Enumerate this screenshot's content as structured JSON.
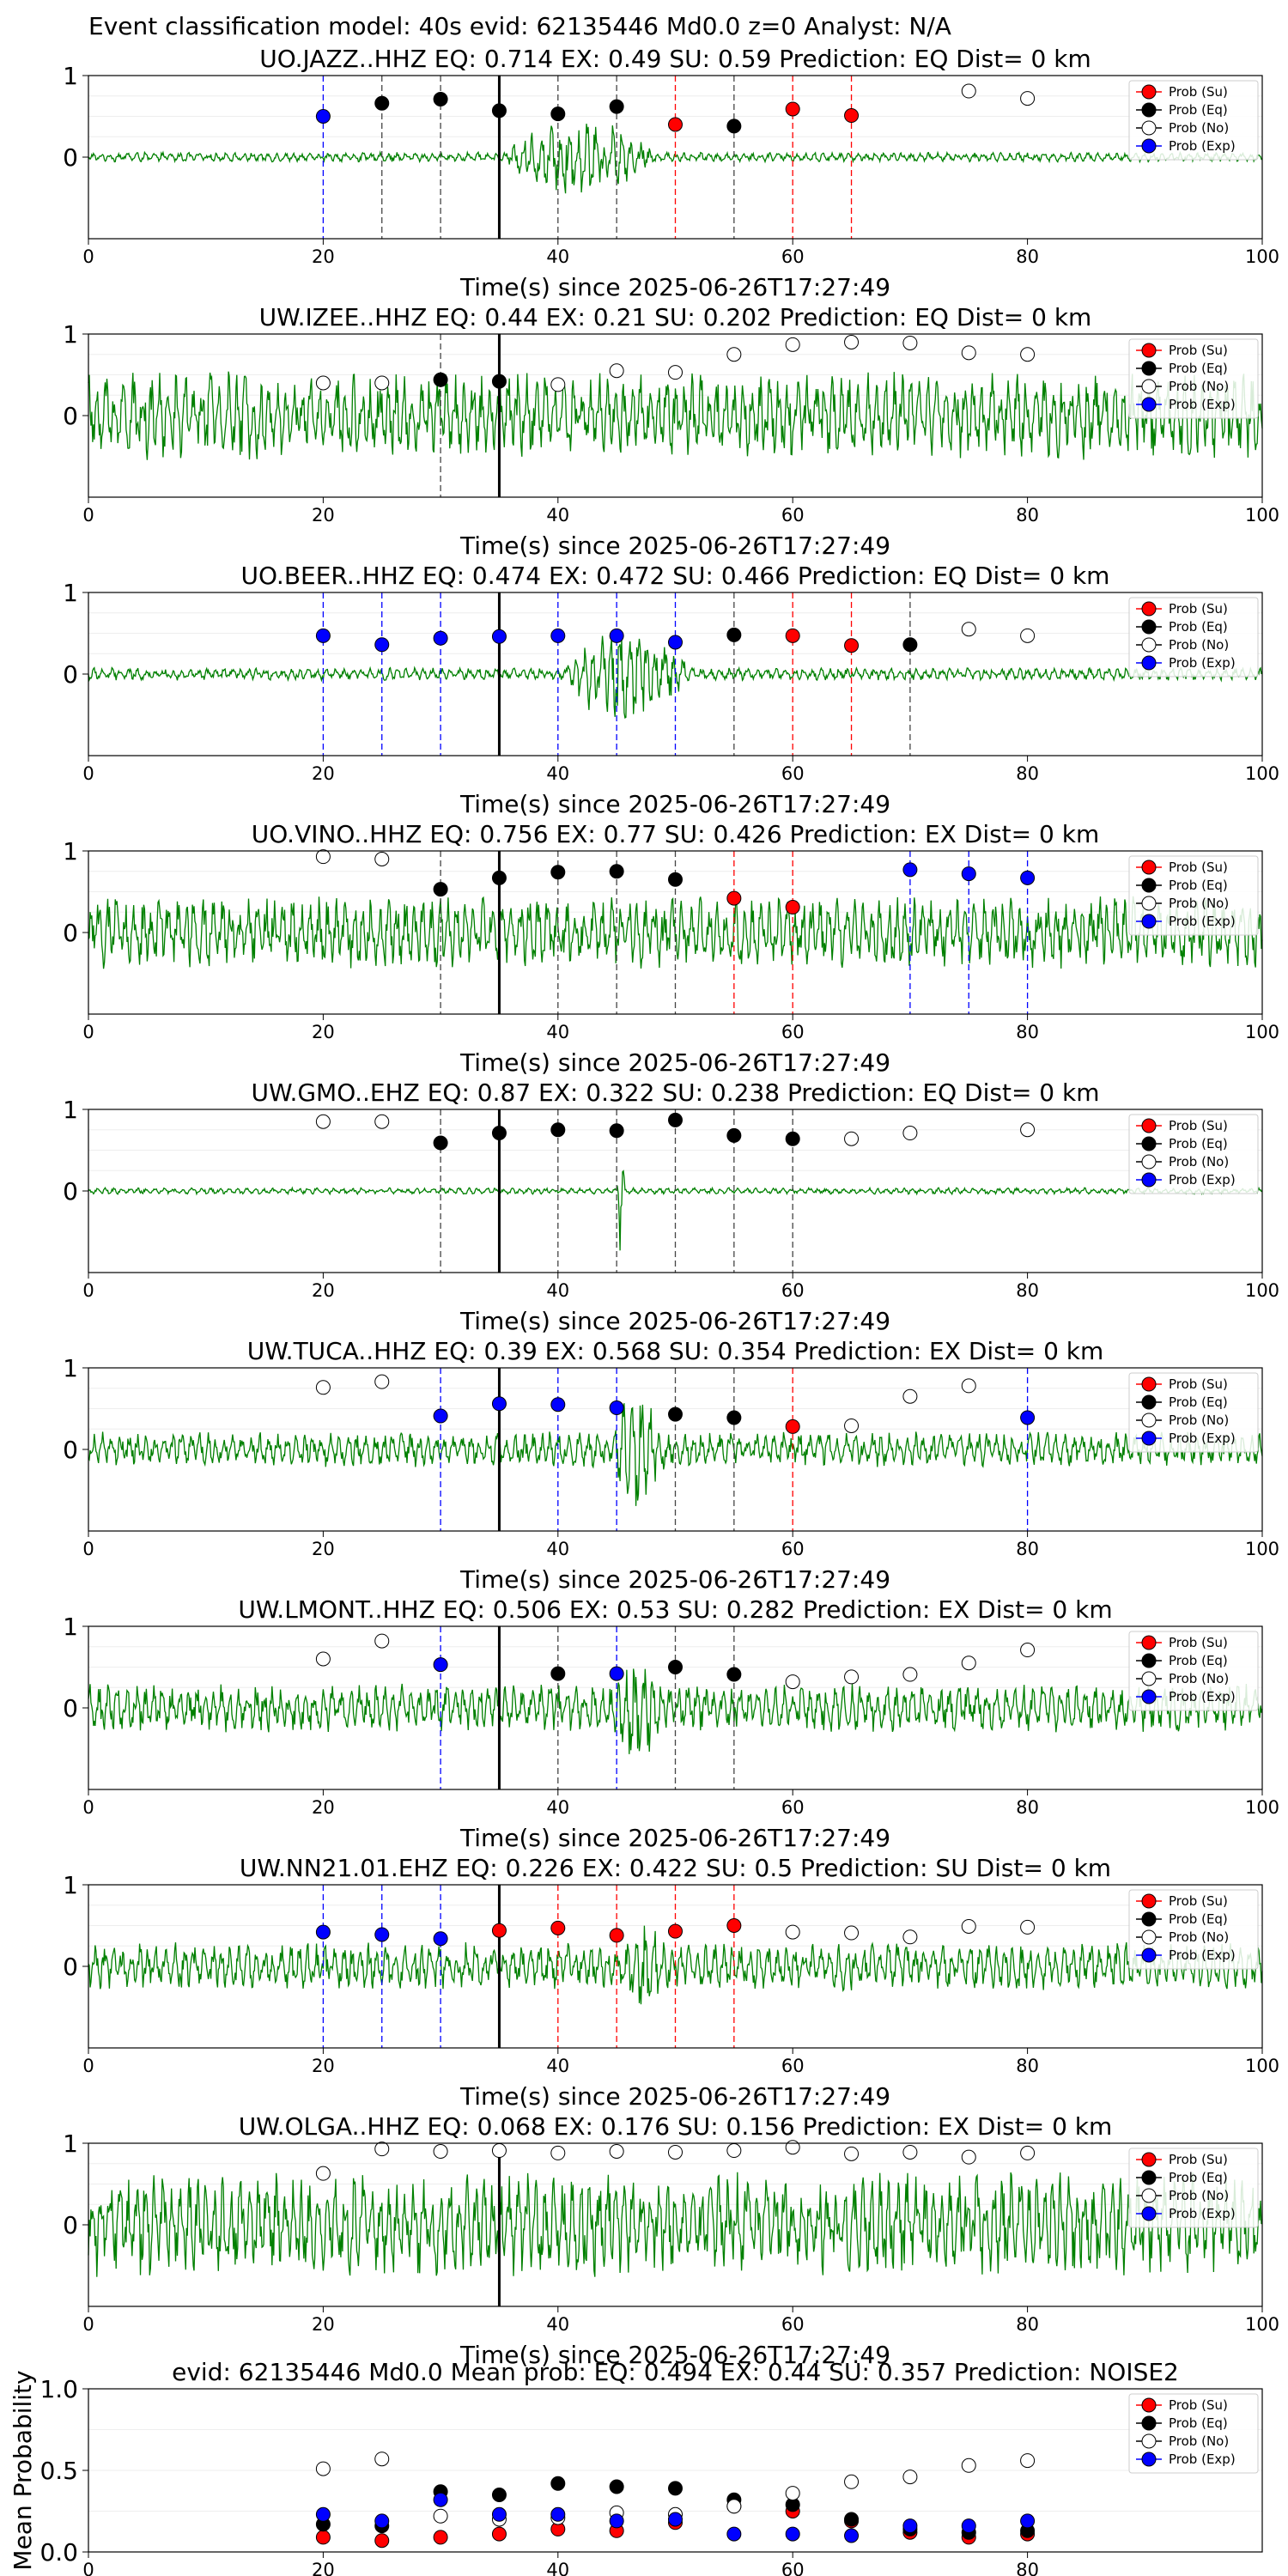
{
  "suptitle": "Event classification model: 40s evid: 62135446 Md0.0 z=0 Analyst: N/A",
  "legend_labels": [
    "Prob (Su)",
    "Prob (Eq)",
    "Prob (No)",
    "Prob (Exp)"
  ],
  "colors": {
    "su": "#ff0000",
    "eq": "#000000",
    "no": "#ffffff",
    "exp": "#0000ff",
    "waveform": "#008000",
    "origin_line": "#000000"
  },
  "chart_data": [
    {
      "type": "line",
      "title": "UO.JAZZ..HHZ   EQ: 0.714  EX: 0.49  SU: 0.59   Prediction: EQ    Dist= 0 km",
      "xlabel": "Time(s) since 2025-06-26T17:27:49",
      "xlim": [
        0,
        100
      ],
      "ylim": [
        -1,
        1
      ],
      "xticks": [
        "0",
        "20",
        "40",
        "60",
        "80",
        "100"
      ],
      "yticks": [
        "0",
        "1"
      ],
      "origin_time": 35,
      "waveform": {
        "amplitude": 0.06,
        "burst_start": 35,
        "burst_end": 55,
        "burst_amplitude": 0.6
      },
      "points": [
        {
          "t": 20,
          "cls": "exp",
          "p": 0.5
        },
        {
          "t": 25,
          "cls": "eq",
          "p": 0.66
        },
        {
          "t": 30,
          "cls": "eq",
          "p": 0.71
        },
        {
          "t": 35,
          "cls": "eq",
          "p": 0.57
        },
        {
          "t": 40,
          "cls": "eq",
          "p": 0.53
        },
        {
          "t": 45,
          "cls": "eq",
          "p": 0.62
        },
        {
          "t": 50,
          "cls": "su",
          "p": 0.4
        },
        {
          "t": 55,
          "cls": "eq",
          "p": 0.38
        },
        {
          "t": 60,
          "cls": "su",
          "p": 0.59
        },
        {
          "t": 65,
          "cls": "su",
          "p": 0.51
        },
        {
          "t": 75,
          "cls": "no",
          "p": 0.81
        },
        {
          "t": 80,
          "cls": "no",
          "p": 0.72
        }
      ]
    },
    {
      "type": "line",
      "title": "UW.IZEE..HHZ   EQ: 0.44  EX: 0.21  SU: 0.202   Prediction: EQ    Dist= 0 km",
      "xlabel": "Time(s) since 2025-06-26T17:27:49",
      "xlim": [
        0,
        100
      ],
      "ylim": [
        -1,
        1
      ],
      "xticks": [
        "0",
        "20",
        "40",
        "60",
        "80",
        "100"
      ],
      "yticks": [
        "0",
        "1"
      ],
      "origin_time": 35,
      "waveform": {
        "amplitude": 0.55,
        "burst_start": 0,
        "burst_end": 0,
        "burst_amplitude": 0
      },
      "points": [
        {
          "t": 20,
          "cls": "no",
          "p": 0.4
        },
        {
          "t": 25,
          "cls": "no",
          "p": 0.4
        },
        {
          "t": 30,
          "cls": "eq",
          "p": 0.44
        },
        {
          "t": 35,
          "cls": "eq",
          "p": 0.42
        },
        {
          "t": 40,
          "cls": "no",
          "p": 0.38
        },
        {
          "t": 45,
          "cls": "no",
          "p": 0.55
        },
        {
          "t": 50,
          "cls": "no",
          "p": 0.53
        },
        {
          "t": 55,
          "cls": "no",
          "p": 0.75
        },
        {
          "t": 60,
          "cls": "no",
          "p": 0.87
        },
        {
          "t": 65,
          "cls": "no",
          "p": 0.9
        },
        {
          "t": 70,
          "cls": "no",
          "p": 0.89
        },
        {
          "t": 75,
          "cls": "no",
          "p": 0.77
        },
        {
          "t": 80,
          "cls": "no",
          "p": 0.75
        }
      ]
    },
    {
      "type": "line",
      "title": "UO.BEER..HHZ   EQ: 0.474  EX: 0.472  SU: 0.466   Prediction: EQ    Dist= 0 km",
      "xlabel": "Time(s) since 2025-06-26T17:27:49",
      "xlim": [
        0,
        100
      ],
      "ylim": [
        -1,
        1
      ],
      "xticks": [
        "0",
        "20",
        "40",
        "60",
        "80",
        "100"
      ],
      "yticks": [
        "0",
        "1"
      ],
      "origin_time": 35,
      "waveform": {
        "amplitude": 0.08,
        "burst_start": 40,
        "burst_end": 57,
        "burst_amplitude": 0.75
      },
      "points": [
        {
          "t": 20,
          "cls": "exp",
          "p": 0.47
        },
        {
          "t": 25,
          "cls": "exp",
          "p": 0.36
        },
        {
          "t": 30,
          "cls": "exp",
          "p": 0.44
        },
        {
          "t": 35,
          "cls": "exp",
          "p": 0.46
        },
        {
          "t": 40,
          "cls": "exp",
          "p": 0.47
        },
        {
          "t": 45,
          "cls": "exp",
          "p": 0.47
        },
        {
          "t": 50,
          "cls": "exp",
          "p": 0.39
        },
        {
          "t": 55,
          "cls": "eq",
          "p": 0.48
        },
        {
          "t": 60,
          "cls": "su",
          "p": 0.47
        },
        {
          "t": 65,
          "cls": "su",
          "p": 0.35
        },
        {
          "t": 70,
          "cls": "eq",
          "p": 0.36
        },
        {
          "t": 75,
          "cls": "no",
          "p": 0.55
        },
        {
          "t": 80,
          "cls": "no",
          "p": 0.47
        }
      ]
    },
    {
      "type": "line",
      "title": "UO.VINO..HHZ   EQ: 0.756  EX: 0.77  SU: 0.426   Prediction: EX    Dist= 0 km",
      "xlabel": "Time(s) since 2025-06-26T17:27:49",
      "xlim": [
        0,
        100
      ],
      "ylim": [
        -1,
        1
      ],
      "xticks": [
        "0",
        "20",
        "40",
        "60",
        "80",
        "100"
      ],
      "yticks": [
        "0",
        "1"
      ],
      "origin_time": 35,
      "waveform": {
        "amplitude": 0.45,
        "burst_start": 0,
        "burst_end": 0,
        "burst_amplitude": 0
      },
      "points": [
        {
          "t": 20,
          "cls": "no",
          "p": 0.93
        },
        {
          "t": 25,
          "cls": "no",
          "p": 0.9
        },
        {
          "t": 30,
          "cls": "eq",
          "p": 0.53
        },
        {
          "t": 35,
          "cls": "eq",
          "p": 0.67
        },
        {
          "t": 40,
          "cls": "eq",
          "p": 0.74
        },
        {
          "t": 45,
          "cls": "eq",
          "p": 0.75
        },
        {
          "t": 50,
          "cls": "eq",
          "p": 0.65
        },
        {
          "t": 55,
          "cls": "su",
          "p": 0.42
        },
        {
          "t": 60,
          "cls": "su",
          "p": 0.31
        },
        {
          "t": 70,
          "cls": "exp",
          "p": 0.77
        },
        {
          "t": 75,
          "cls": "exp",
          "p": 0.72
        },
        {
          "t": 80,
          "cls": "exp",
          "p": 0.67
        }
      ]
    },
    {
      "type": "line",
      "title": "UW.GMO..EHZ   EQ: 0.87  EX: 0.322  SU: 0.238   Prediction: EQ    Dist= 0 km",
      "xlabel": "Time(s) since 2025-06-26T17:27:49",
      "xlim": [
        0,
        100
      ],
      "ylim": [
        -1,
        1
      ],
      "xticks": [
        "0",
        "20",
        "40",
        "60",
        "80",
        "100"
      ],
      "yticks": [
        "0",
        "1"
      ],
      "origin_time": 35,
      "waveform": {
        "amplitude": 0.04,
        "burst_start": 45,
        "burst_end": 46,
        "burst_amplitude": 0.95
      },
      "points": [
        {
          "t": 20,
          "cls": "no",
          "p": 0.85
        },
        {
          "t": 25,
          "cls": "no",
          "p": 0.85
        },
        {
          "t": 30,
          "cls": "eq",
          "p": 0.59
        },
        {
          "t": 35,
          "cls": "eq",
          "p": 0.71
        },
        {
          "t": 40,
          "cls": "eq",
          "p": 0.75
        },
        {
          "t": 45,
          "cls": "eq",
          "p": 0.74
        },
        {
          "t": 50,
          "cls": "eq",
          "p": 0.87
        },
        {
          "t": 55,
          "cls": "eq",
          "p": 0.68
        },
        {
          "t": 60,
          "cls": "eq",
          "p": 0.64
        },
        {
          "t": 65,
          "cls": "no",
          "p": 0.64
        },
        {
          "t": 70,
          "cls": "no",
          "p": 0.71
        },
        {
          "t": 80,
          "cls": "no",
          "p": 0.75
        }
      ]
    },
    {
      "type": "line",
      "title": "UW.TUCA..HHZ   EQ: 0.39  EX: 0.568  SU: 0.354   Prediction: EX    Dist= 0 km",
      "xlabel": "Time(s) since 2025-06-26T17:27:49",
      "xlim": [
        0,
        100
      ],
      "ylim": [
        -1,
        1
      ],
      "xticks": [
        "0",
        "20",
        "40",
        "60",
        "80",
        "100"
      ],
      "yticks": [
        "0",
        "1"
      ],
      "origin_time": 35,
      "waveform": {
        "amplitude": 0.22,
        "burst_start": 44,
        "burst_end": 52,
        "burst_amplitude": 0.9
      },
      "points": [
        {
          "t": 20,
          "cls": "no",
          "p": 0.76
        },
        {
          "t": 25,
          "cls": "no",
          "p": 0.83
        },
        {
          "t": 30,
          "cls": "exp",
          "p": 0.41
        },
        {
          "t": 35,
          "cls": "exp",
          "p": 0.56
        },
        {
          "t": 40,
          "cls": "exp",
          "p": 0.55
        },
        {
          "t": 45,
          "cls": "exp",
          "p": 0.51
        },
        {
          "t": 50,
          "cls": "eq",
          "p": 0.43
        },
        {
          "t": 55,
          "cls": "eq",
          "p": 0.39
        },
        {
          "t": 60,
          "cls": "su",
          "p": 0.28
        },
        {
          "t": 65,
          "cls": "no",
          "p": 0.29
        },
        {
          "t": 70,
          "cls": "no",
          "p": 0.65
        },
        {
          "t": 75,
          "cls": "no",
          "p": 0.78
        },
        {
          "t": 80,
          "cls": "exp",
          "p": 0.39
        }
      ]
    },
    {
      "type": "line",
      "title": "UW.LMONT..HHZ   EQ: 0.506  EX: 0.53  SU: 0.282   Prediction: EX    Dist= 0 km",
      "xlabel": "Time(s) since 2025-06-26T17:27:49",
      "xlim": [
        0,
        100
      ],
      "ylim": [
        -1,
        1
      ],
      "xticks": [
        "0",
        "20",
        "40",
        "60",
        "80",
        "100"
      ],
      "yticks": [
        "0",
        "1"
      ],
      "origin_time": 35,
      "waveform": {
        "amplitude": 0.3,
        "burst_start": 44,
        "burst_end": 52,
        "burst_amplitude": 0.8
      },
      "points": [
        {
          "t": 20,
          "cls": "no",
          "p": 0.6
        },
        {
          "t": 25,
          "cls": "no",
          "p": 0.82
        },
        {
          "t": 30,
          "cls": "exp",
          "p": 0.53
        },
        {
          "t": 40,
          "cls": "eq",
          "p": 0.42
        },
        {
          "t": 45,
          "cls": "exp",
          "p": 0.42
        },
        {
          "t": 50,
          "cls": "eq",
          "p": 0.5
        },
        {
          "t": 55,
          "cls": "eq",
          "p": 0.41
        },
        {
          "t": 60,
          "cls": "no",
          "p": 0.32
        },
        {
          "t": 65,
          "cls": "no",
          "p": 0.38
        },
        {
          "t": 70,
          "cls": "no",
          "p": 0.41
        },
        {
          "t": 75,
          "cls": "no",
          "p": 0.55
        },
        {
          "t": 80,
          "cls": "no",
          "p": 0.71
        }
      ]
    },
    {
      "type": "line",
      "title": "UW.NN21.01.EHZ   EQ: 0.226  EX: 0.422  SU: 0.5   Prediction: SU    Dist= 0 km",
      "xlabel": "Time(s) since 2025-06-26T17:27:49",
      "xlim": [
        0,
        100
      ],
      "ylim": [
        -1,
        1
      ],
      "xticks": [
        "0",
        "20",
        "40",
        "60",
        "80",
        "100"
      ],
      "yticks": [
        "0",
        "1"
      ],
      "origin_time": 35,
      "waveform": {
        "amplitude": 0.3,
        "burst_start": 45,
        "burst_end": 52,
        "burst_amplitude": 0.7
      },
      "points": [
        {
          "t": 20,
          "cls": "exp",
          "p": 0.42
        },
        {
          "t": 25,
          "cls": "exp",
          "p": 0.39
        },
        {
          "t": 30,
          "cls": "exp",
          "p": 0.34
        },
        {
          "t": 35,
          "cls": "su",
          "p": 0.44
        },
        {
          "t": 40,
          "cls": "su",
          "p": 0.47
        },
        {
          "t": 45,
          "cls": "su",
          "p": 0.38
        },
        {
          "t": 50,
          "cls": "su",
          "p": 0.43
        },
        {
          "t": 55,
          "cls": "su",
          "p": 0.5
        },
        {
          "t": 60,
          "cls": "no",
          "p": 0.42
        },
        {
          "t": 65,
          "cls": "no",
          "p": 0.41
        },
        {
          "t": 70,
          "cls": "no",
          "p": 0.36
        },
        {
          "t": 75,
          "cls": "no",
          "p": 0.49
        },
        {
          "t": 80,
          "cls": "no",
          "p": 0.48
        }
      ]
    },
    {
      "type": "line",
      "title": "UW.OLGA..HHZ   EQ: 0.068  EX: 0.176  SU: 0.156   Prediction: EX    Dist= 0 km",
      "xlabel": "Time(s) since 2025-06-26T17:27:49",
      "xlim": [
        0,
        100
      ],
      "ylim": [
        -1,
        1
      ],
      "xticks": [
        "0",
        "20",
        "40",
        "60",
        "80",
        "100"
      ],
      "yticks": [
        "0",
        "1"
      ],
      "origin_time": 35,
      "waveform": {
        "amplitude": 0.65,
        "burst_start": 0,
        "burst_end": 0,
        "burst_amplitude": 0
      },
      "points": [
        {
          "t": 20,
          "cls": "no",
          "p": 0.63
        },
        {
          "t": 25,
          "cls": "no",
          "p": 0.93
        },
        {
          "t": 30,
          "cls": "no",
          "p": 0.9
        },
        {
          "t": 35,
          "cls": "no",
          "p": 0.91
        },
        {
          "t": 40,
          "cls": "no",
          "p": 0.88
        },
        {
          "t": 45,
          "cls": "no",
          "p": 0.9
        },
        {
          "t": 50,
          "cls": "no",
          "p": 0.89
        },
        {
          "t": 55,
          "cls": "no",
          "p": 0.91
        },
        {
          "t": 60,
          "cls": "no",
          "p": 0.95
        },
        {
          "t": 65,
          "cls": "no",
          "p": 0.87
        },
        {
          "t": 70,
          "cls": "no",
          "p": 0.89
        },
        {
          "t": 75,
          "cls": "no",
          "p": 0.83
        },
        {
          "t": 80,
          "cls": "no",
          "p": 0.88
        }
      ]
    },
    {
      "type": "scatter",
      "title": "evid: 62135446  Md0.0   Mean prob:    EQ: 0.494  EX: 0.44  SU: 0.357   Prediction: NOISE2",
      "ylabel": "Mean Probability",
      "xlim": [
        0,
        100
      ],
      "ylim": [
        0,
        1
      ],
      "xticks": [
        "0",
        "20",
        "40",
        "60",
        "80"
      ],
      "yticks": [
        "0.0",
        "0.5",
        "1.0"
      ],
      "series": [
        {
          "cls": "su",
          "x": [
            20,
            25,
            30,
            35,
            40,
            45,
            50,
            55,
            60,
            65,
            70,
            75,
            80
          ],
          "y": [
            0.09,
            0.07,
            0.09,
            0.11,
            0.14,
            0.13,
            0.18,
            0.28,
            0.25,
            0.19,
            0.12,
            0.09,
            0.11
          ]
        },
        {
          "cls": "eq",
          "x": [
            20,
            25,
            30,
            35,
            40,
            45,
            50,
            55,
            60,
            65,
            70,
            75,
            80
          ],
          "y": [
            0.17,
            0.16,
            0.37,
            0.35,
            0.42,
            0.4,
            0.39,
            0.32,
            0.29,
            0.2,
            0.14,
            0.12,
            0.13
          ]
        },
        {
          "cls": "no",
          "x": [
            20,
            25,
            30,
            35,
            40,
            45,
            50,
            55,
            60,
            65,
            70,
            75,
            80
          ],
          "y": [
            0.51,
            0.57,
            0.22,
            0.2,
            0.21,
            0.24,
            0.23,
            0.28,
            0.36,
            0.43,
            0.46,
            0.53,
            0.56
          ]
        },
        {
          "cls": "exp",
          "x": [
            20,
            25,
            30,
            35,
            40,
            45,
            50,
            55,
            60,
            65,
            70,
            75,
            80
          ],
          "y": [
            0.23,
            0.19,
            0.32,
            0.23,
            0.23,
            0.19,
            0.2,
            0.11,
            0.11,
            0.1,
            0.16,
            0.16,
            0.19
          ]
        }
      ]
    }
  ]
}
